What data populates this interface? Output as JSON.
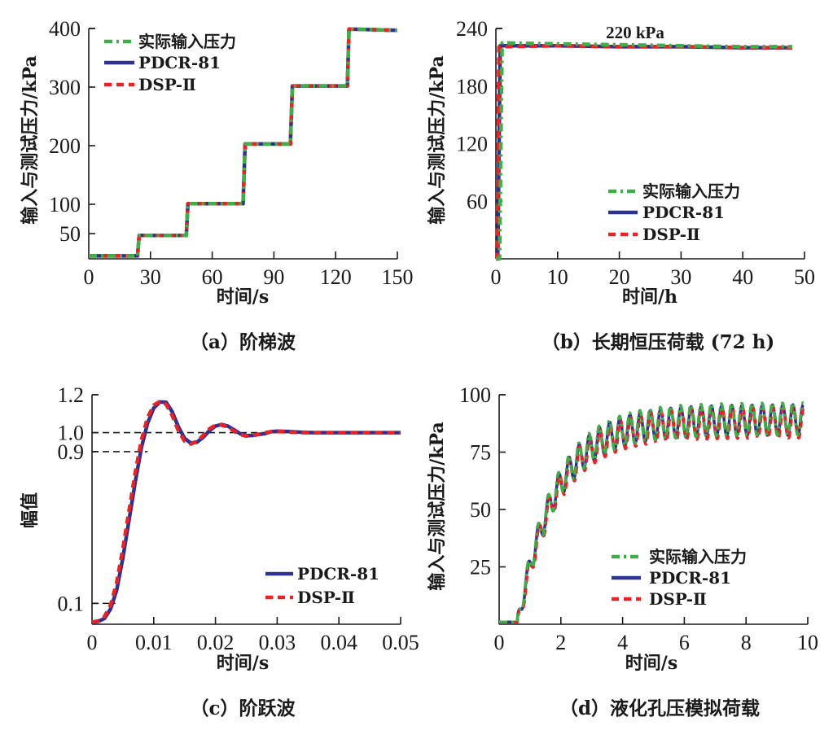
{
  "colors": {
    "input": "#3fae49",
    "pdcr": "#2e3192",
    "dsp": "#ed2024",
    "axis": "#1a1a1a",
    "ref_line": "#1a1a1a"
  },
  "chart_data": [
    {
      "id": "a",
      "type": "line",
      "caption": "（a）阶梯波",
      "xlabel": "时间/s",
      "ylabel": "输入与测试压力/kPa",
      "xlim": [
        0,
        150
      ],
      "ylim": [
        7,
        400
      ],
      "xticks": [
        0,
        30,
        60,
        90,
        120,
        150
      ],
      "xtick_labels": [
        "0",
        "30",
        "60",
        "90",
        "120",
        "150"
      ],
      "yticks": [
        50,
        100,
        200,
        300,
        400
      ],
      "ytick_labels": [
        "50",
        "100",
        "200",
        "300",
        "400"
      ],
      "legend": {
        "position": "top-left",
        "entries": [
          "实际输入压力",
          "PDCR-81",
          "DSP-Ⅱ"
        ]
      },
      "series": [
        {
          "name": "实际输入压力",
          "style": "dash-dot",
          "color_key": "input",
          "x": [
            0,
            23.7,
            24.5,
            47.4,
            48.2,
            75.0,
            76.0,
            98.0,
            99.0,
            125.7,
            126.5,
            150
          ],
          "y": [
            12,
            12,
            47,
            47,
            101,
            101,
            203,
            203,
            302,
            302,
            399,
            397
          ]
        },
        {
          "name": "PDCR-81",
          "style": "solid",
          "color_key": "pdcr",
          "x": [
            0,
            23.7,
            24.5,
            47.4,
            48.2,
            75.0,
            76.0,
            98.0,
            99.0,
            125.7,
            126.5,
            150
          ],
          "y": [
            12,
            12,
            47,
            47,
            101,
            101,
            203,
            203,
            302,
            302,
            399,
            397
          ]
        },
        {
          "name": "DSP-Ⅱ",
          "style": "dashed",
          "color_key": "dsp",
          "x": [
            0,
            23.7,
            24.5,
            47.4,
            48.2,
            75.0,
            76.0,
            98.0,
            99.0,
            125.7,
            126.5,
            150
          ],
          "y": [
            12,
            12,
            47,
            47,
            101,
            101,
            203,
            203,
            302,
            302,
            399,
            397
          ]
        }
      ]
    },
    {
      "id": "b",
      "type": "line",
      "caption": "（b）长期恒压荷载 (72 h)",
      "xlabel": "时间/h",
      "ylabel": "输入与测试压力/kPa",
      "annotation": "220 kPa",
      "xlim": [
        0,
        50
      ],
      "ylim": [
        0,
        240
      ],
      "xticks": [
        0,
        10,
        20,
        30,
        40,
        50
      ],
      "xtick_labels": [
        "0",
        "10",
        "20",
        "30",
        "40",
        "50"
      ],
      "yticks": [
        60,
        120,
        180,
        240
      ],
      "ytick_labels": [
        "60",
        "120",
        "180",
        "240"
      ],
      "legend": {
        "position": "bottom-right",
        "entries": [
          "实际输入压力",
          "PDCR-81",
          "DSP-Ⅱ"
        ]
      },
      "series": [
        {
          "name": "实际输入压力",
          "style": "dash-dot",
          "color_key": "input",
          "x": [
            0,
            0.6,
            1.0,
            10,
            20,
            30,
            40,
            48
          ],
          "y": [
            0,
            0,
            225,
            224,
            223,
            222,
            221,
            221
          ]
        },
        {
          "name": "PDCR-81",
          "style": "solid",
          "color_key": "pdcr",
          "x": [
            0,
            0.3,
            0.7,
            10,
            20,
            30,
            40,
            48
          ],
          "y": [
            0,
            0,
            222,
            222,
            221,
            221,
            220,
            220
          ]
        },
        {
          "name": "DSP-Ⅱ",
          "style": "dashed",
          "color_key": "dsp",
          "x": [
            0,
            0.2,
            0.5,
            10,
            20,
            30,
            40,
            48
          ],
          "y": [
            0,
            0,
            221,
            222,
            221,
            221,
            220,
            220
          ]
        }
      ]
    },
    {
      "id": "c",
      "type": "line",
      "caption": "（c）阶跃波",
      "xlabel": "时间/s",
      "ylabel": "幅值",
      "xlim": [
        0,
        0.05
      ],
      "ylim": [
        -0.01,
        1.2
      ],
      "xticks": [
        0,
        0.01,
        0.02,
        0.03,
        0.04,
        0.05
      ],
      "xtick_labels": [
        "0",
        "0.01",
        "0.02",
        "0.03",
        "0.04",
        "0.05"
      ],
      "yticks": [
        0.1,
        0.9,
        1.0,
        1.2
      ],
      "ytick_labels": [
        "0.1",
        "0.9",
        "1.0",
        "1.2"
      ],
      "reference_lines": [
        {
          "y": 1.0,
          "x_end": 0.05
        },
        {
          "y": 0.9,
          "x_end": 0.009
        },
        {
          "y": 0.1,
          "x_end": 0.0038
        }
      ],
      "legend": {
        "position": "bottom-right",
        "entries": [
          "PDCR-81",
          "DSP-Ⅱ"
        ]
      },
      "series": [
        {
          "name": "PDCR-81",
          "style": "solid",
          "color_key": "pdcr",
          "x": [
            0,
            0.001,
            0.002,
            0.003,
            0.004,
            0.005,
            0.006,
            0.007,
            0.008,
            0.009,
            0.01,
            0.011,
            0.012,
            0.013,
            0.014,
            0.015,
            0.016,
            0.017,
            0.018,
            0.019,
            0.02,
            0.021,
            0.022,
            0.023,
            0.024,
            0.025,
            0.026,
            0.027,
            0.028,
            0.029,
            0.03,
            0.032,
            0.034,
            0.036,
            0.04,
            0.045,
            0.05
          ],
          "y": [
            0,
            0.005,
            0.02,
            0.07,
            0.17,
            0.34,
            0.54,
            0.74,
            0.92,
            1.05,
            1.13,
            1.162,
            1.16,
            1.11,
            1.03,
            0.97,
            0.945,
            0.95,
            0.975,
            1.01,
            1.035,
            1.043,
            1.035,
            1.015,
            0.995,
            0.985,
            0.985,
            0.99,
            0.995,
            1.005,
            1.008,
            1.006,
            1.002,
            1.0,
            1.0,
            1.0,
            1.0
          ]
        },
        {
          "name": "DSP-Ⅱ",
          "style": "dashed",
          "color_key": "dsp",
          "x": [
            0,
            0.001,
            0.002,
            0.003,
            0.004,
            0.005,
            0.006,
            0.007,
            0.008,
            0.009,
            0.01,
            0.011,
            0.012,
            0.013,
            0.014,
            0.015,
            0.016,
            0.017,
            0.018,
            0.019,
            0.02,
            0.021,
            0.022,
            0.023,
            0.024,
            0.025,
            0.026,
            0.027,
            0.028,
            0.029,
            0.03,
            0.032,
            0.034,
            0.036,
            0.04,
            0.045,
            0.05
          ],
          "y": [
            0,
            0.008,
            0.03,
            0.09,
            0.21,
            0.39,
            0.59,
            0.79,
            0.96,
            1.08,
            1.145,
            1.165,
            1.15,
            1.09,
            1.01,
            0.955,
            0.94,
            0.955,
            0.985,
            1.02,
            1.04,
            1.04,
            1.03,
            1.008,
            0.99,
            0.982,
            0.985,
            0.992,
            1.0,
            1.005,
            1.006,
            1.004,
            1.0,
            1.0,
            1.0,
            1.0,
            1.0
          ]
        }
      ]
    },
    {
      "id": "d",
      "type": "line",
      "caption": "（d）液化孔压模拟荷载",
      "xlabel": "时间/s",
      "ylabel": "输入与测试压力/kPa",
      "xlim": [
        0,
        10
      ],
      "ylim": [
        0,
        100
      ],
      "xticks": [
        0,
        2,
        4,
        6,
        8,
        10
      ],
      "xtick_labels": [
        "0",
        "2",
        "4",
        "6",
        "8",
        "10"
      ],
      "yticks": [
        25,
        50,
        75,
        100
      ],
      "ytick_labels": [
        "25",
        "50",
        "75",
        "100"
      ],
      "legend": {
        "position": "bottom-right",
        "entries": [
          "实际输入压力",
          "PDCR-81",
          "DSP-Ⅱ"
        ]
      },
      "signal_model": {
        "description": "rising mean with ~3 Hz cyclic oscillation",
        "start_time": 0.6,
        "initial_level": 1,
        "mean_final": 89,
        "mean_rise_time_constant": 1.2,
        "oscillation_period": 0.33,
        "amplitude_start": 4,
        "amplitude_final": 7
      },
      "series": [
        {
          "name": "实际输入压力",
          "style": "dash-dot",
          "color_key": "input",
          "phase_offset": 0,
          "amplitude_scale": 1.0,
          "mean_offset": 0.5
        },
        {
          "name": "PDCR-81",
          "style": "solid",
          "color_key": "pdcr",
          "phase_offset": 0.01,
          "amplitude_scale": 0.95,
          "mean_offset": 0
        },
        {
          "name": "DSP-Ⅱ",
          "style": "dashed",
          "color_key": "dsp",
          "phase_offset": 0.03,
          "amplitude_scale": 0.95,
          "mean_offset": -1.2
        }
      ]
    }
  ]
}
